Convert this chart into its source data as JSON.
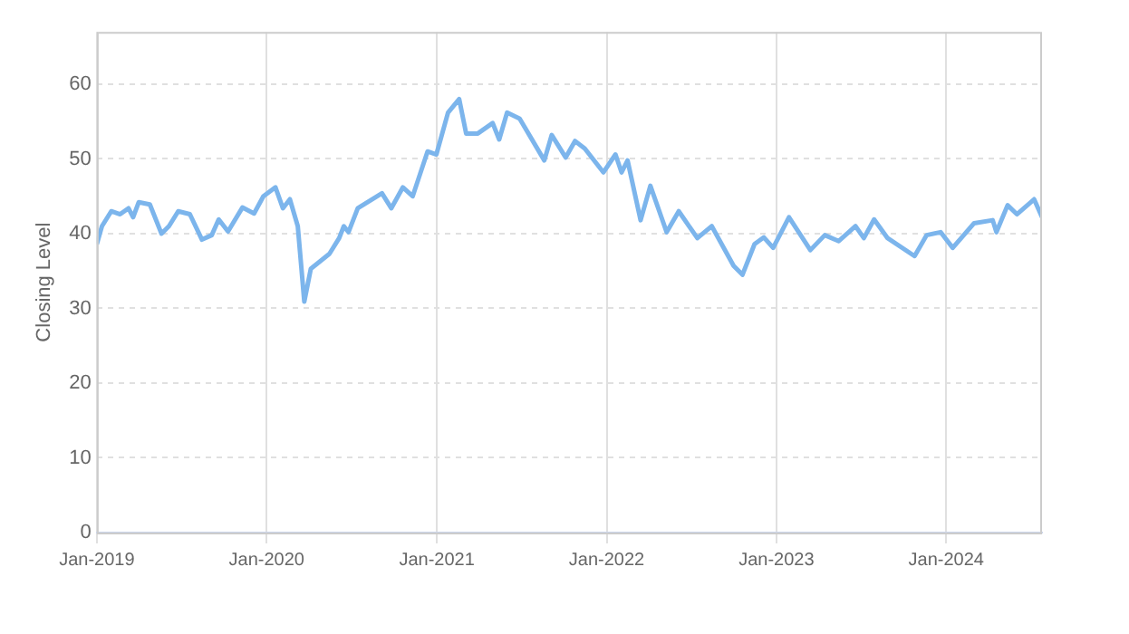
{
  "chart_data": {
    "type": "line",
    "ylabel": "Closing Level",
    "x": [
      "2019-01-01",
      "2019-01-12",
      "2019-02-01",
      "2019-02-20",
      "2019-03-10",
      "2019-03-20",
      "2019-04-01",
      "2019-04-25",
      "2019-05-20",
      "2019-06-05",
      "2019-06-25",
      "2019-07-20",
      "2019-08-15",
      "2019-09-05",
      "2019-09-20",
      "2019-10-10",
      "2019-11-10",
      "2019-12-05",
      "2019-12-25",
      "2020-01-20",
      "2020-02-05",
      "2020-02-20",
      "2020-03-08",
      "2020-03-22",
      "2020-04-05",
      "2020-05-15",
      "2020-06-05",
      "2020-06-15",
      "2020-06-25",
      "2020-07-15",
      "2020-09-05",
      "2020-09-25",
      "2020-10-20",
      "2020-11-10",
      "2020-12-12",
      "2020-12-31",
      "2021-01-25",
      "2021-02-18",
      "2021-03-05",
      "2021-03-30",
      "2021-05-01",
      "2021-05-15",
      "2021-06-01",
      "2021-06-28",
      "2021-08-20",
      "2021-09-05",
      "2021-10-05",
      "2021-10-25",
      "2021-11-15",
      "2021-12-25",
      "2022-01-20",
      "2022-02-02",
      "2022-02-15",
      "2022-03-15",
      "2022-04-05",
      "2022-05-10",
      "2022-06-05",
      "2022-07-15",
      "2022-08-15",
      "2022-10-01",
      "2022-10-20",
      "2022-11-15",
      "2022-12-05",
      "2022-12-25",
      "2023-01-28",
      "2023-03-15",
      "2023-04-15",
      "2023-05-15",
      "2023-06-20",
      "2023-07-08",
      "2023-07-30",
      "2023-08-28",
      "2023-10-25",
      "2023-11-20",
      "2023-12-20",
      "2024-01-15",
      "2024-03-01",
      "2024-04-10",
      "2024-04-18",
      "2024-05-12",
      "2024-06-01",
      "2024-07-08",
      "2024-07-25"
    ],
    "series": [
      {
        "color": "#7cb5ec",
        "values": [
          38.6,
          41.0,
          43.0,
          42.6,
          43.4,
          42.2,
          44.2,
          43.9,
          40.0,
          41.0,
          43.0,
          42.6,
          39.2,
          39.8,
          41.9,
          40.3,
          43.5,
          42.7,
          45.0,
          46.2,
          43.4,
          44.6,
          41.0,
          30.9,
          35.3,
          37.3,
          39.4,
          41.0,
          40.2,
          43.4,
          45.4,
          43.4,
          46.2,
          45.0,
          51.0,
          50.6,
          56.2,
          58.0,
          53.4,
          53.4,
          54.8,
          52.6,
          56.2,
          55.4,
          49.8,
          53.2,
          50.2,
          52.4,
          51.4,
          48.2,
          50.6,
          48.2,
          49.8,
          41.8,
          46.4,
          40.2,
          43.0,
          39.4,
          41.0,
          35.7,
          34.5,
          38.6,
          39.5,
          38.1,
          42.2,
          37.8,
          39.8,
          39.0,
          41.0,
          39.4,
          41.9,
          39.4,
          37.0,
          39.8,
          40.2,
          38.1,
          41.4,
          41.8,
          40.2,
          43.8,
          42.6,
          44.6,
          42.2
        ]
      }
    ],
    "xlim": [
      "2019-01-01",
      "2024-07-25"
    ],
    "xticks": [
      {
        "value": "2019-01-01",
        "label": "Jan-2019"
      },
      {
        "value": "2020-01-01",
        "label": "Jan-2020"
      },
      {
        "value": "2021-01-01",
        "label": "Jan-2021"
      },
      {
        "value": "2022-01-01",
        "label": "Jan-2022"
      },
      {
        "value": "2023-01-01",
        "label": "Jan-2023"
      },
      {
        "value": "2024-01-01",
        "label": "Jan-2024"
      }
    ],
    "ylim": [
      0,
      67
    ],
    "yticks": [
      0,
      10,
      20,
      30,
      40,
      50,
      60
    ],
    "grid": true,
    "marker": "none",
    "line_style": "solid"
  }
}
